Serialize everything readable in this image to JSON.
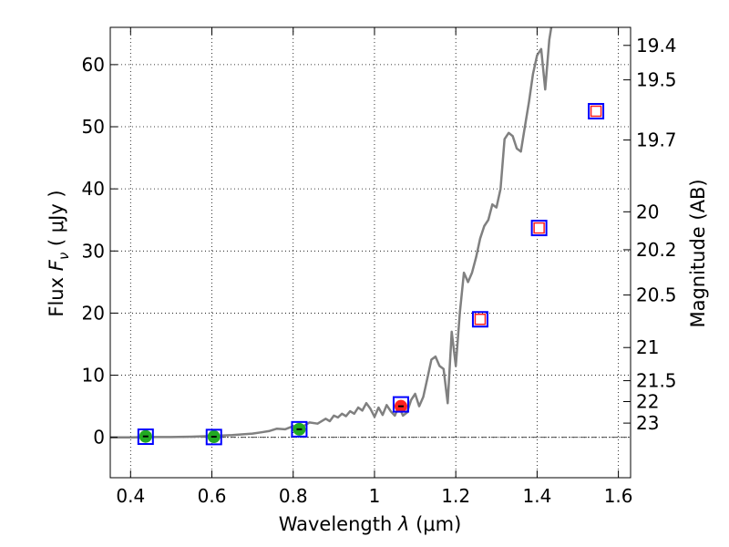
{
  "chart_data": {
    "type": "scatter",
    "xlabel_prefix": "Wavelength",
    "xlabel_symbol": "λ",
    "xlabel_unit": "(μm)",
    "ylabel_prefix": "Flux",
    "ylabel_symbol": "F",
    "ylabel_subscript": "ν",
    "ylabel_unit": "( μJy )",
    "y2label": "Magnitude (AB)",
    "xlim": [
      0.35,
      1.63
    ],
    "ylim": [
      -6.5,
      66
    ],
    "grid": true,
    "x_ticks": [
      0.4,
      0.6,
      0.8,
      1.0,
      1.2,
      1.4,
      1.6
    ],
    "x_tick_labels": [
      "0.4",
      "0.6",
      "0.8",
      "1",
      "1.2",
      "1.4",
      "1.6"
    ],
    "y_ticks": [
      0,
      10,
      20,
      30,
      40,
      50,
      60
    ],
    "y_tick_labels": [
      "0",
      "10",
      "20",
      "30",
      "40",
      "50",
      "60"
    ],
    "magnitude_ticks": [
      "19.4",
      "19.5",
      "19.7",
      "20",
      "20.2",
      "20.5",
      "21",
      "21.5",
      "22",
      "23"
    ],
    "model_spectrum": {
      "color": "#808080",
      "points": [
        [
          0.35,
          0.0
        ],
        [
          0.4,
          0.0
        ],
        [
          0.45,
          0.05
        ],
        [
          0.5,
          0.05
        ],
        [
          0.55,
          0.1
        ],
        [
          0.6,
          0.2
        ],
        [
          0.65,
          0.35
        ],
        [
          0.7,
          0.6
        ],
        [
          0.72,
          0.8
        ],
        [
          0.74,
          1.0
        ],
        [
          0.76,
          1.4
        ],
        [
          0.78,
          1.3
        ],
        [
          0.8,
          1.8
        ],
        [
          0.82,
          1.6
        ],
        [
          0.84,
          2.4
        ],
        [
          0.86,
          2.2
        ],
        [
          0.88,
          3.0
        ],
        [
          0.89,
          2.6
        ],
        [
          0.9,
          3.5
        ],
        [
          0.91,
          3.2
        ],
        [
          0.92,
          3.8
        ],
        [
          0.93,
          3.4
        ],
        [
          0.94,
          4.2
        ],
        [
          0.95,
          3.8
        ],
        [
          0.96,
          4.8
        ],
        [
          0.97,
          4.3
        ],
        [
          0.98,
          5.5
        ],
        [
          0.99,
          4.6
        ],
        [
          1.0,
          3.3
        ],
        [
          1.01,
          4.8
        ],
        [
          1.02,
          3.6
        ],
        [
          1.03,
          5.2
        ],
        [
          1.04,
          4.2
        ],
        [
          1.05,
          3.5
        ],
        [
          1.06,
          5.0
        ],
        [
          1.07,
          3.5
        ],
        [
          1.08,
          4.0
        ],
        [
          1.09,
          6.0
        ],
        [
          1.1,
          7.0
        ],
        [
          1.11,
          5.0
        ],
        [
          1.12,
          6.5
        ],
        [
          1.13,
          9.5
        ],
        [
          1.14,
          12.5
        ],
        [
          1.15,
          13.0
        ],
        [
          1.16,
          11.5
        ],
        [
          1.17,
          11.0
        ],
        [
          1.18,
          5.5
        ],
        [
          1.19,
          17.0
        ],
        [
          1.2,
          11.5
        ],
        [
          1.21,
          20.0
        ],
        [
          1.22,
          26.5
        ],
        [
          1.23,
          25.0
        ],
        [
          1.24,
          26.5
        ],
        [
          1.25,
          29.0
        ],
        [
          1.26,
          32.0
        ],
        [
          1.27,
          34.0
        ],
        [
          1.28,
          35.0
        ],
        [
          1.29,
          37.5
        ],
        [
          1.3,
          37.0
        ],
        [
          1.31,
          40.0
        ],
        [
          1.32,
          48.0
        ],
        [
          1.33,
          49.0
        ],
        [
          1.34,
          48.5
        ],
        [
          1.35,
          46.5
        ],
        [
          1.36,
          46.0
        ],
        [
          1.37,
          50.0
        ],
        [
          1.38,
          54.0
        ],
        [
          1.39,
          58.5
        ],
        [
          1.4,
          61.5
        ],
        [
          1.41,
          62.5
        ],
        [
          1.42,
          56.0
        ],
        [
          1.43,
          64.0
        ],
        [
          1.44,
          68.0
        ]
      ]
    },
    "series": [
      {
        "marker": "filled-circle",
        "color": "#22aa22",
        "points": [
          [
            0.437,
            0.15
          ],
          [
            0.605,
            0.1
          ],
          [
            0.815,
            1.3
          ]
        ]
      },
      {
        "marker": "filled-circle",
        "color": "#ff2020",
        "points": [
          [
            1.065,
            5.0
          ]
        ]
      },
      {
        "marker": "open-square",
        "color": "#0000ff",
        "points": [
          [
            0.437,
            0.1
          ],
          [
            0.605,
            0.05
          ],
          [
            0.815,
            1.3
          ],
          [
            1.065,
            5.3
          ],
          [
            1.26,
            19.0
          ],
          [
            1.405,
            33.7
          ],
          [
            1.545,
            52.5
          ]
        ]
      },
      {
        "marker": "open-square",
        "color": "#ff2020",
        "points": [
          [
            1.26,
            19.0
          ],
          [
            1.405,
            33.7
          ],
          [
            1.545,
            52.5
          ]
        ]
      }
    ]
  }
}
